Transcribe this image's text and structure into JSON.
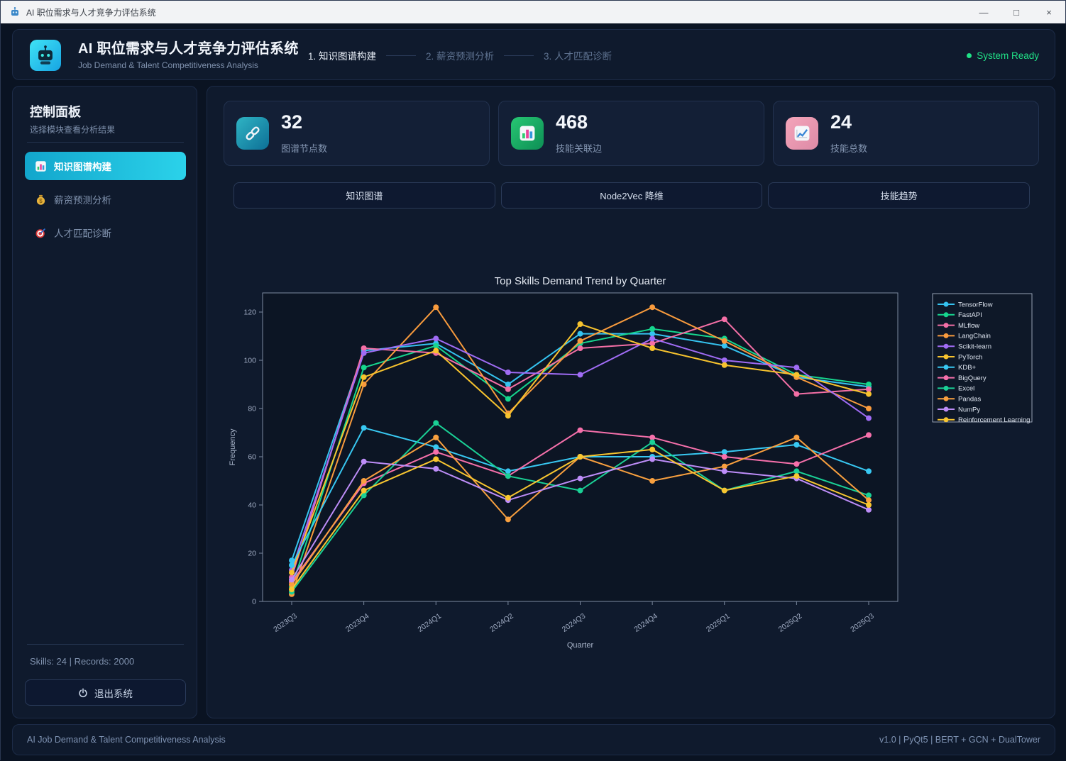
{
  "window": {
    "title": "AI 职位需求与人才竞争力评估系统",
    "controls": {
      "minimize": "—",
      "maximize": "□",
      "close": "×"
    }
  },
  "header": {
    "title": "AI 职位需求与人才竞争力评估系统",
    "subtitle": "Job Demand & Talent Competitiveness Analysis",
    "steps": [
      {
        "label": "1. 知识图谱构建",
        "active": true
      },
      {
        "label": "2. 薪资预测分析",
        "active": false
      },
      {
        "label": "3. 人才匹配诊断",
        "active": false
      }
    ],
    "status": {
      "text": "System Ready",
      "color": "#20e287"
    }
  },
  "sidebar": {
    "title": "控制面板",
    "subtitle": "选择模块查看分析结果",
    "items": [
      {
        "label": "知识图谱构建",
        "icon": "bar-chart",
        "active": true
      },
      {
        "label": "薪资预测分析",
        "icon": "money-bag",
        "active": false
      },
      {
        "label": "人才匹配诊断",
        "icon": "target",
        "active": false
      }
    ],
    "stats_line": "Skills: 24  |  Records: 2000",
    "exit_label": "退出系统"
  },
  "stat_cards": [
    {
      "value": "32",
      "label": "图谱节点数",
      "icon": "link"
    },
    {
      "value": "468",
      "label": "技能关联边",
      "icon": "bar-chart"
    },
    {
      "value": "24",
      "label": "技能总数",
      "icon": "trend-up"
    }
  ],
  "tabs": [
    {
      "label": "知识图谱"
    },
    {
      "label": "Node2Vec 降维"
    },
    {
      "label": "技能趋势"
    }
  ],
  "chart_data": {
    "type": "line",
    "title": "Top Skills Demand Trend by Quarter",
    "xlabel": "Quarter",
    "ylabel": "Frequency",
    "x": [
      "2023Q3",
      "2023Q4",
      "2024Q1",
      "2024Q2",
      "2024Q3",
      "2024Q4",
      "2025Q1",
      "2025Q2",
      "2025Q3"
    ],
    "yticks": [
      0,
      20,
      40,
      60,
      80,
      100,
      120
    ],
    "ylim": [
      0,
      128
    ],
    "grid": false,
    "legend_position": "upper right",
    "series": [
      {
        "name": "TensorFlow",
        "color": "#35c3f0",
        "values": [
          17,
          104,
          107,
          90,
          111,
          111,
          106,
          93,
          89
        ]
      },
      {
        "name": "FastAPI",
        "color": "#16d68e",
        "values": [
          6,
          97,
          106,
          84,
          107,
          113,
          109,
          94,
          90
        ]
      },
      {
        "name": "MLflow",
        "color": "#f46fa6",
        "values": [
          10,
          105,
          103,
          88,
          105,
          107,
          117,
          86,
          88
        ]
      },
      {
        "name": "LangChain",
        "color": "#f99b3d",
        "values": [
          3,
          90,
          122,
          78,
          108,
          122,
          108,
          93,
          80
        ]
      },
      {
        "name": "Scikit-learn",
        "color": "#a06cf5",
        "values": [
          13,
          103,
          109,
          95,
          94,
          109,
          100,
          97,
          76
        ]
      },
      {
        "name": "PyTorch",
        "color": "#f7c32e",
        "values": [
          12,
          93,
          104,
          77,
          115,
          105,
          98,
          94,
          86
        ]
      },
      {
        "name": "KDB+",
        "color": "#38c8f2",
        "values": [
          15,
          72,
          64,
          54,
          60,
          60,
          62,
          65,
          54
        ]
      },
      {
        "name": "BigQuery",
        "color": "#f670ab",
        "values": [
          8,
          49,
          62,
          52,
          71,
          68,
          60,
          57,
          69
        ]
      },
      {
        "name": "Excel",
        "color": "#1ad196",
        "values": [
          4,
          44,
          74,
          52,
          46,
          66,
          46,
          54,
          44
        ]
      },
      {
        "name": "Pandas",
        "color": "#f9a03f",
        "values": [
          7,
          50,
          68,
          34,
          60,
          50,
          56,
          68,
          42
        ]
      },
      {
        "name": "NumPy",
        "color": "#bd8df8",
        "values": [
          9,
          58,
          55,
          42,
          51,
          59,
          54,
          51,
          38
        ]
      },
      {
        "name": "Reinforcement Learning",
        "color": "#f8c630",
        "values": [
          5,
          46,
          59,
          43,
          60,
          63,
          46,
          52,
          40
        ]
      }
    ]
  },
  "footer": {
    "left": "AI Job Demand & Talent Competitiveness Analysis",
    "right": "v1.0  |  PyQt5  |  BERT + GCN + DualTower"
  }
}
